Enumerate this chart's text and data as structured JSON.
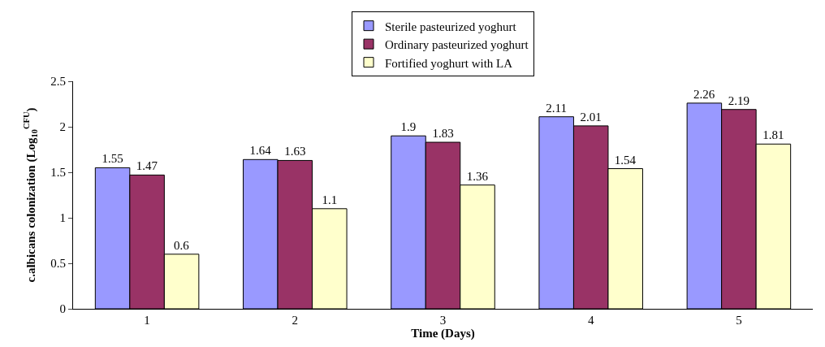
{
  "chart_data": {
    "type": "bar",
    "xlabel": "Time (Days)",
    "ylabel": "c.albicans colonization (Log$_{10}$$^{CFU}$)",
    "categories": [
      "1",
      "2",
      "3",
      "4",
      "5"
    ],
    "series": [
      {
        "name": "Sterile pasteurized yoghurt",
        "color": "#9999ff",
        "values": [
          1.55,
          1.64,
          1.9,
          2.11,
          2.26
        ]
      },
      {
        "name": "Ordinary pasteurized yoghurt",
        "color": "#993366",
        "values": [
          1.47,
          1.63,
          1.83,
          2.01,
          2.19
        ]
      },
      {
        "name": "Fortified yoghurt with LA",
        "color": "#ffffcc",
        "values": [
          0.6,
          1.1,
          1.36,
          1.54,
          1.81
        ]
      }
    ],
    "ylim": [
      0,
      2.5
    ],
    "yticks": [
      0,
      0.5,
      1,
      1.5,
      2,
      2.5
    ],
    "data_labels": true,
    "grid": false,
    "legend": "top"
  }
}
